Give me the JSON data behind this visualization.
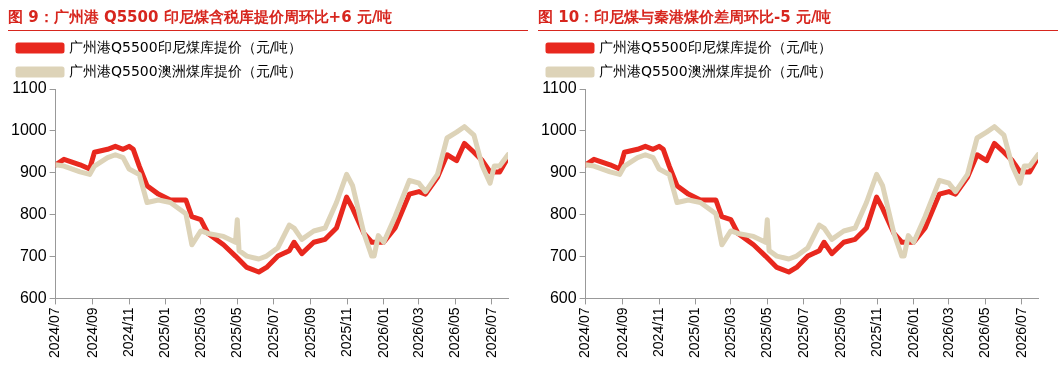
{
  "chart_data": [
    {
      "type": "line",
      "title": "图 9：广州港 Q5500 印尼煤含税库提价周环比+6 元/吨",
      "legend": "top left",
      "grid": false,
      "marker": "none",
      "line_style": "solid",
      "xlim": [
        "2024-07-01",
        "2026-07-28"
      ],
      "xticks": [
        {
          "value": "2024-07-01",
          "label": "2024/07"
        },
        {
          "value": "2024-09-01",
          "label": "2024/09"
        },
        {
          "value": "2024-11-01",
          "label": "2024/11"
        },
        {
          "value": "2025-01-01",
          "label": "2025/01"
        },
        {
          "value": "2025-03-01",
          "label": "2025/03"
        },
        {
          "value": "2025-05-01",
          "label": "2025/05"
        },
        {
          "value": "2025-07-01",
          "label": "2025/07"
        },
        {
          "value": "2025-09-01",
          "label": "2025/09"
        },
        {
          "value": "2025-11-01",
          "label": "2025/11"
        },
        {
          "value": "2026-01-01",
          "label": "2026/01"
        },
        {
          "value": "2026-03-01",
          "label": "2026/03"
        },
        {
          "value": "2026-05-01",
          "label": "2026/05"
        },
        {
          "value": "2026-07-01",
          "label": "2026/07"
        }
      ],
      "ylim": [
        600,
        1100
      ],
      "yticks": [
        600,
        700,
        800,
        900,
        1000,
        1100
      ],
      "series": [
        {
          "name": "广州港Q5500印尼煤库提价（元/吨）",
          "color": "#e8281e",
          "x": [
            "2024-07-01",
            "2024-07-15",
            "2024-08-11",
            "2024-08-27",
            "2024-09-04",
            "2024-09-26",
            "2024-10-09",
            "2024-10-22",
            "2024-11-01",
            "2024-11-08",
            "2024-11-18",
            "2024-12-01",
            "2024-12-20",
            "2025-01-09",
            "2025-02-04",
            "2025-02-14",
            "2025-03-01",
            "2025-03-13",
            "2025-04-08",
            "2025-04-28",
            "2025-05-17",
            "2025-06-06",
            "2025-06-19",
            "2025-07-08",
            "2025-07-27",
            "2025-08-04",
            "2025-08-17",
            "2025-09-06",
            "2025-09-25",
            "2025-10-14",
            "2025-10-31",
            "2025-11-10",
            "2025-11-29",
            "2025-12-12",
            "2026-01-01",
            "2026-01-20",
            "2026-02-13",
            "2026-03-01",
            "2026-03-12",
            "2026-04-01",
            "2026-04-17",
            "2026-05-03",
            "2026-05-16",
            "2026-06-01",
            "2026-06-15",
            "2026-06-28",
            "2026-07-14",
            "2026-07-28"
          ],
          "values": [
            919,
            932,
            919,
            909,
            949,
            956,
            963,
            956,
            963,
            956,
            916,
            869,
            849,
            835,
            835,
            795,
            788,
            755,
            728,
            701,
            674,
            663,
            674,
            701,
            714,
            734,
            707,
            734,
            741,
            768,
            842,
            815,
            755,
            734,
            734,
            768,
            849,
            855,
            849,
            889,
            943,
            929,
            970,
            949,
            929,
            902,
            902,
            936
          ]
        },
        {
          "name": "广州港Q5500澳洲煤库提价（元/吨）",
          "color": "#ddd3b8",
          "x": [
            "2024-07-01",
            "2024-07-15",
            "2024-08-11",
            "2024-08-27",
            "2024-09-04",
            "2024-09-26",
            "2024-10-09",
            "2024-10-22",
            "2024-11-01",
            "2024-11-18",
            "2024-12-01",
            "2024-12-20",
            "2025-01-09",
            "2025-02-04",
            "2025-02-14",
            "2025-03-01",
            "2025-03-13",
            "2025-04-08",
            "2025-04-28",
            "2025-05-01",
            "2025-05-04",
            "2025-05-17",
            "2025-06-06",
            "2025-06-19",
            "2025-07-08",
            "2025-07-27",
            "2025-08-04",
            "2025-08-17",
            "2025-09-06",
            "2025-09-25",
            "2025-10-14",
            "2025-10-31",
            "2025-11-10",
            "2025-11-29",
            "2025-12-12",
            "2025-12-16",
            "2025-12-23",
            "2026-01-01",
            "2026-01-20",
            "2026-02-13",
            "2026-03-01",
            "2026-03-12",
            "2026-04-01",
            "2026-04-17",
            "2026-05-03",
            "2026-05-16",
            "2026-06-01",
            "2026-06-15",
            "2026-06-28",
            "2026-07-05",
            "2026-07-14",
            "2026-07-28"
          ],
          "values": [
            919,
            916,
            902,
            896,
            916,
            936,
            943,
            936,
            909,
            896,
            829,
            835,
            829,
            802,
            728,
            761,
            755,
            748,
            734,
            788,
            714,
            701,
            694,
            701,
            721,
            775,
            768,
            741,
            761,
            768,
            829,
            896,
            869,
            755,
            701,
            701,
            750,
            734,
            795,
            882,
            875,
            855,
            896,
            983,
            997,
            1010,
            990,
            916,
            875,
            916,
            916,
            943
          ]
        }
      ]
    },
    {
      "type": "line",
      "title": "图 10：印尼煤与秦港煤价差周环比-5 元/吨",
      "legend": "top left",
      "grid": false,
      "marker": "none",
      "line_style": "solid",
      "xlim": [
        "2024-07-01",
        "2026-07-28"
      ],
      "xticks": [
        {
          "value": "2024-07-01",
          "label": "2024/07"
        },
        {
          "value": "2024-09-01",
          "label": "2024/09"
        },
        {
          "value": "2024-11-01",
          "label": "2024/11"
        },
        {
          "value": "2025-01-01",
          "label": "2025/01"
        },
        {
          "value": "2025-03-01",
          "label": "2025/03"
        },
        {
          "value": "2025-05-01",
          "label": "2025/05"
        },
        {
          "value": "2025-07-01",
          "label": "2025/07"
        },
        {
          "value": "2025-09-01",
          "label": "2025/09"
        },
        {
          "value": "2025-11-01",
          "label": "2025/11"
        },
        {
          "value": "2026-01-01",
          "label": "2026/01"
        },
        {
          "value": "2026-03-01",
          "label": "2026/03"
        },
        {
          "value": "2026-05-01",
          "label": "2026/05"
        },
        {
          "value": "2026-07-01",
          "label": "2026/07"
        }
      ],
      "ylim": [
        600,
        1100
      ],
      "yticks": [
        600,
        700,
        800,
        900,
        1000,
        1100
      ],
      "series": [
        {
          "name": "广州港Q5500印尼煤库提价（元/吨）",
          "color": "#e8281e",
          "x": [
            "2024-07-01",
            "2024-07-15",
            "2024-08-11",
            "2024-08-27",
            "2024-09-04",
            "2024-09-26",
            "2024-10-09",
            "2024-10-22",
            "2024-11-01",
            "2024-11-08",
            "2024-11-18",
            "2024-12-01",
            "2024-12-20",
            "2025-01-09",
            "2025-02-04",
            "2025-02-14",
            "2025-03-01",
            "2025-03-13",
            "2025-04-08",
            "2025-04-28",
            "2025-05-17",
            "2025-06-06",
            "2025-06-19",
            "2025-07-08",
            "2025-07-27",
            "2025-08-04",
            "2025-08-17",
            "2025-09-06",
            "2025-09-25",
            "2025-10-14",
            "2025-10-31",
            "2025-11-10",
            "2025-11-29",
            "2025-12-12",
            "2026-01-01",
            "2026-01-20",
            "2026-02-13",
            "2026-03-01",
            "2026-03-12",
            "2026-04-01",
            "2026-04-17",
            "2026-05-03",
            "2026-05-16",
            "2026-06-01",
            "2026-06-15",
            "2026-06-28",
            "2026-07-14",
            "2026-07-28"
          ],
          "values": [
            919,
            932,
            919,
            909,
            949,
            956,
            963,
            956,
            963,
            956,
            916,
            869,
            849,
            835,
            835,
            795,
            788,
            755,
            728,
            701,
            674,
            663,
            674,
            701,
            714,
            734,
            707,
            734,
            741,
            768,
            842,
            815,
            755,
            734,
            734,
            768,
            849,
            855,
            849,
            889,
            943,
            929,
            970,
            949,
            929,
            902,
            902,
            936
          ]
        },
        {
          "name": "广州港Q5500澳洲煤库提价（元/吨）",
          "color": "#ddd3b8",
          "x": [
            "2024-07-01",
            "2024-07-15",
            "2024-08-11",
            "2024-08-27",
            "2024-09-04",
            "2024-09-26",
            "2024-10-09",
            "2024-10-22",
            "2024-11-01",
            "2024-11-18",
            "2024-12-01",
            "2024-12-20",
            "2025-01-09",
            "2025-02-04",
            "2025-02-14",
            "2025-03-01",
            "2025-03-13",
            "2025-04-08",
            "2025-04-28",
            "2025-05-01",
            "2025-05-04",
            "2025-05-17",
            "2025-06-06",
            "2025-06-19",
            "2025-07-08",
            "2025-07-27",
            "2025-08-04",
            "2025-08-17",
            "2025-09-06",
            "2025-09-25",
            "2025-10-14",
            "2025-10-31",
            "2025-11-10",
            "2025-11-29",
            "2025-12-12",
            "2025-12-16",
            "2025-12-23",
            "2026-01-01",
            "2026-01-20",
            "2026-02-13",
            "2026-03-01",
            "2026-03-12",
            "2026-04-01",
            "2026-04-17",
            "2026-05-03",
            "2026-05-16",
            "2026-06-01",
            "2026-06-15",
            "2026-06-28",
            "2026-07-05",
            "2026-07-14",
            "2026-07-28"
          ],
          "values": [
            919,
            916,
            902,
            896,
            916,
            936,
            943,
            936,
            909,
            896,
            829,
            835,
            829,
            802,
            728,
            761,
            755,
            748,
            734,
            788,
            714,
            701,
            694,
            701,
            721,
            775,
            768,
            741,
            761,
            768,
            829,
            896,
            869,
            755,
            701,
            701,
            750,
            734,
            795,
            882,
            875,
            855,
            896,
            983,
            997,
            1010,
            990,
            916,
            875,
            916,
            916,
            943
          ]
        }
      ]
    }
  ]
}
